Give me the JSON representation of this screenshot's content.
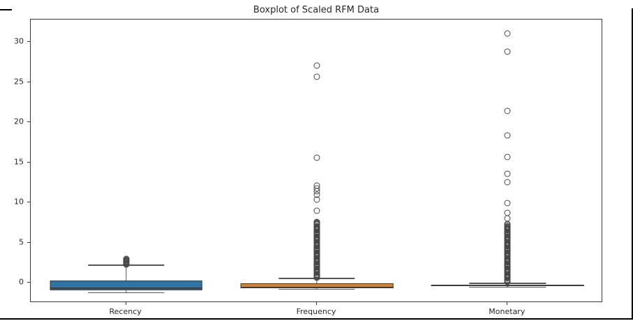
{
  "window": {
    "border_color": "#000000"
  },
  "chart_data": {
    "type": "boxplot",
    "title": "Boxplot of Scaled RFM Data",
    "xlabel": "",
    "ylabel": "",
    "categories": [
      "Recency",
      "Frequency",
      "Monetary"
    ],
    "yticks": [
      0,
      5,
      10,
      15,
      20,
      25,
      30
    ],
    "ylim": [
      -2.5,
      32.8
    ],
    "grid": false,
    "legend": "none",
    "layout": {
      "box_width_frac": 0.8,
      "cap_width_frac": 0.4
    },
    "series": [
      {
        "name": "Recency",
        "color": "#2e74a4",
        "q1": -0.96,
        "median": -0.61,
        "q3": 0.26,
        "whisker_low": -1.17,
        "whisker_high": 2.26,
        "outliers": [
          2.25,
          2.32,
          2.39,
          2.46,
          2.53,
          2.6,
          2.67,
          2.74,
          2.81,
          2.88,
          2.95
        ]
      },
      {
        "name": "Frequency",
        "color": "#d9822e",
        "q1": -0.65,
        "median": -0.52,
        "q3": -0.09,
        "whisker_low": -0.72,
        "whisker_high": 0.6,
        "outliers": [
          0.6,
          0.7,
          0.8,
          0.9,
          1,
          1.1,
          1.2,
          1.3,
          1.4,
          1.5,
          1.6,
          1.7,
          1.8,
          1.9,
          2,
          2.1,
          2.2,
          2.3,
          2.4,
          2.5,
          2.6,
          2.7,
          2.8,
          2.9,
          3,
          3.1,
          3.2,
          3.3,
          3.4,
          3.5,
          3.6,
          3.7,
          3.8,
          3.9,
          4,
          4.1,
          4.2,
          4.3,
          4.4,
          4.5,
          4.6,
          4.7,
          4.8,
          4.9,
          5,
          5.1,
          5.2,
          5.3,
          5.4,
          5.5,
          5.6,
          5.7,
          5.8,
          5.9,
          6,
          6.1,
          6.2,
          6.3,
          6.4,
          6.5,
          6.6,
          6.7,
          6.8,
          6.9,
          7,
          7.1,
          7.2,
          7.3,
          7.4,
          7.5,
          7.6,
          9,
          10.35,
          11,
          11.4,
          11.75,
          12.1,
          15.6,
          25.7,
          27.1
        ]
      },
      {
        "name": "Monetary",
        "color": "#4e9160",
        "q1": -0.42,
        "median": -0.3,
        "q3": -0.22,
        "whisker_low": -0.5,
        "whisker_high": -0.02,
        "outliers": [
          0.1,
          0.2,
          0.3,
          0.4,
          0.5,
          0.6,
          0.7,
          0.8,
          0.9,
          1,
          1.1,
          1.2,
          1.3,
          1.4,
          1.5,
          1.6,
          1.7,
          1.8,
          1.9,
          2,
          2.1,
          2.2,
          2.3,
          2.4,
          2.5,
          2.6,
          2.7,
          2.8,
          2.9,
          3,
          3.1,
          3.2,
          3.3,
          3.4,
          3.5,
          3.6,
          3.7,
          3.8,
          3.9,
          4,
          4.1,
          4.2,
          4.3,
          4.4,
          4.5,
          4.6,
          4.7,
          4.8,
          4.9,
          5,
          5.1,
          5.2,
          5.3,
          5.4,
          5.5,
          5.6,
          5.7,
          5.8,
          5.9,
          6,
          6.1,
          6.2,
          6.3,
          6.4,
          6.5,
          6.6,
          6.7,
          6.8,
          6.9,
          7,
          7.1,
          7.2,
          7.3,
          8,
          8.7,
          9.9,
          12.55,
          13.6,
          15.7,
          18.4,
          21.4,
          28.8,
          31.1
        ]
      }
    ]
  }
}
